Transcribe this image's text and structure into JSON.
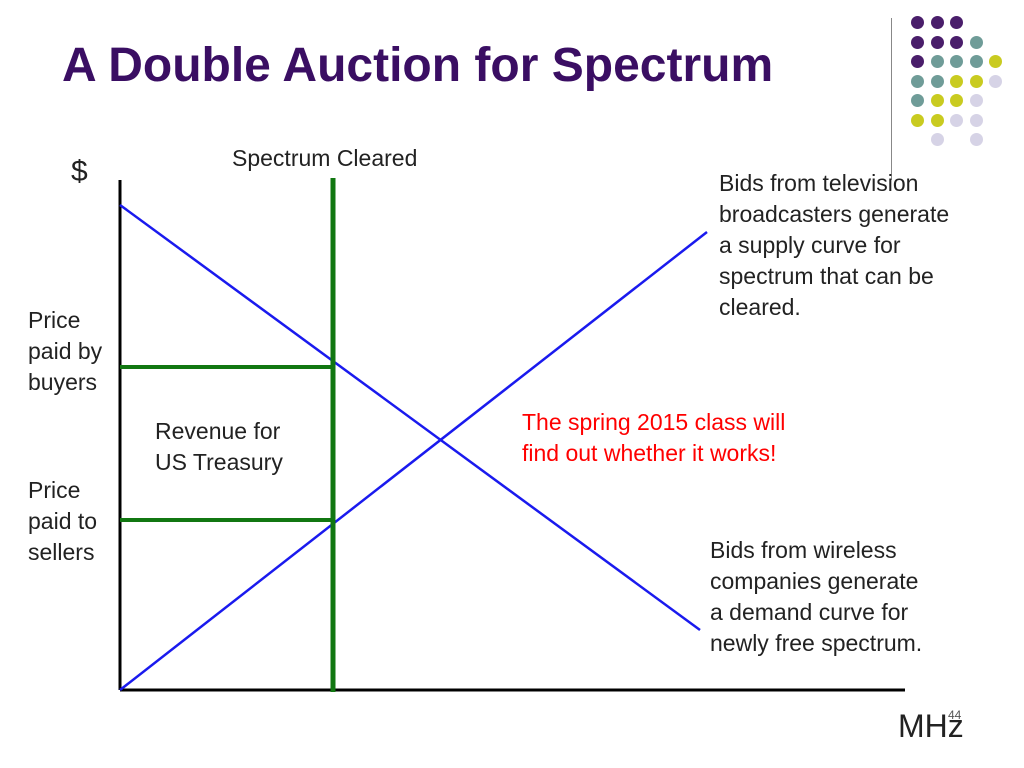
{
  "title": "A Double Auction for Spectrum",
  "axis": {
    "y_label": "$",
    "x_label": "MHz"
  },
  "labels": {
    "spectrum_cleared": "Spectrum Cleared",
    "price_buyers": [
      "Price",
      "paid by",
      "buyers"
    ],
    "price_sellers": [
      "Price",
      "paid to",
      "sellers"
    ],
    "revenue": [
      "Revenue for",
      "US Treasury"
    ],
    "supply_note": [
      "Bids from television",
      "broadcasters generate",
      "a supply curve for",
      "spectrum that can be",
      "cleared."
    ],
    "demand_note": [
      "Bids from wireless",
      "companies generate",
      "a demand curve for",
      "newly free spectrum."
    ],
    "spring_note": [
      "The spring 2015 class will",
      "find out whether it works!"
    ]
  },
  "page_number": "44",
  "colors": {
    "title": "#3a0e63",
    "curves": "#1a1aee",
    "green_lines": "#117711",
    "axes": "#000000",
    "highlight_text": "#ff0000",
    "dot_purple": "#4a1e6b",
    "dot_teal": "#6f9c98",
    "dot_yellow": "#c9cb20",
    "dot_lavender": "#d6d3e6"
  },
  "decoration_dots": [
    [
      "purple",
      "purple",
      "purple",
      "",
      ""
    ],
    [
      "purple",
      "purple",
      "purple",
      "teal",
      ""
    ],
    [
      "purple",
      "teal",
      "teal",
      "teal",
      "yellow"
    ],
    [
      "teal",
      "teal",
      "yellow",
      "yellow",
      "lavender"
    ],
    [
      "teal",
      "yellow",
      "yellow",
      "lavender",
      ""
    ],
    [
      "yellow",
      "yellow",
      "lavender",
      "lavender",
      ""
    ],
    [
      "",
      "lavender",
      "",
      "lavender",
      ""
    ]
  ]
}
